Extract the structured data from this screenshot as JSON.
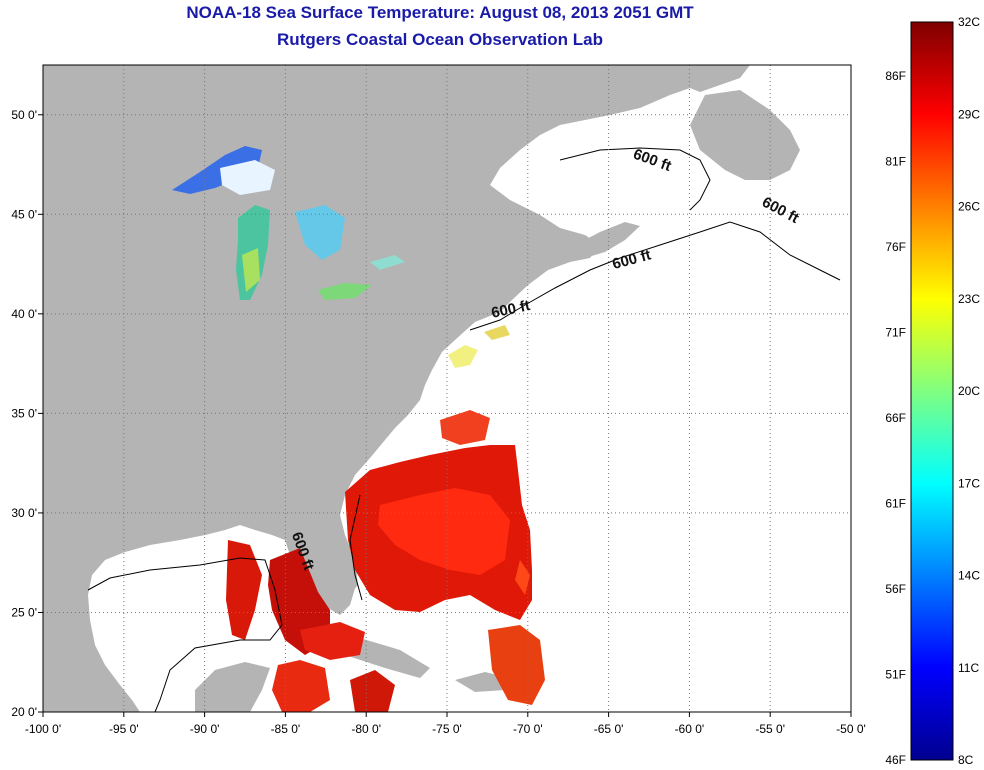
{
  "title": {
    "line1": "NOAA-18 Sea Surface Temperature:  August 08, 2013 2051 GMT",
    "line2": "Rutgers Coastal Ocean Observation Lab"
  },
  "map": {
    "lon_range": [
      -100,
      -50
    ],
    "lat_range": [
      20,
      52.5
    ],
    "lon_ticks": [
      {
        "value": -100,
        "label": "-100 0'"
      },
      {
        "value": -95,
        "label": "-95 0'"
      },
      {
        "value": -90,
        "label": "-90 0'"
      },
      {
        "value": -85,
        "label": "-85 0'"
      },
      {
        "value": -80,
        "label": "-80 0'"
      },
      {
        "value": -75,
        "label": "-75 0'"
      },
      {
        "value": -70,
        "label": "-70 0'"
      },
      {
        "value": -65,
        "label": "-65 0'"
      },
      {
        "value": -60,
        "label": "-60 0'"
      },
      {
        "value": -55,
        "label": "-55 0'"
      },
      {
        "value": -50,
        "label": "-50 0'"
      }
    ],
    "lat_ticks": [
      {
        "value": 50,
        "label": "50 0'"
      },
      {
        "value": 45,
        "label": "45 0'"
      },
      {
        "value": 40,
        "label": "40 0'"
      },
      {
        "value": 35,
        "label": "35 0'"
      },
      {
        "value": 30,
        "label": "30 0'"
      },
      {
        "value": 25,
        "label": "25 0'"
      },
      {
        "value": 20,
        "label": "20 0'"
      }
    ],
    "isobath_labels": [
      {
        "text": "600 ft",
        "lon": -62.4,
        "lat": 47.5,
        "angle": 20
      },
      {
        "text": "600 ft",
        "lon": -54.5,
        "lat": 45.0,
        "angle": 28
      },
      {
        "text": "600 ft",
        "lon": -63.5,
        "lat": 42.5,
        "angle": -15
      },
      {
        "text": "600 ft",
        "lon": -71.0,
        "lat": 40.0,
        "angle": -12
      },
      {
        "text": "600 ft",
        "lon": -84.2,
        "lat": 28.0,
        "angle": 70
      }
    ],
    "land_color": "#b4b4b4",
    "ocean_color": "#ffffff",
    "grid": "dotted"
  },
  "colorbar": {
    "min_c": 8,
    "max_c": 32,
    "celsius_labels": [
      "32C",
      "29C",
      "26C",
      "23C",
      "20C",
      "17C",
      "14C",
      "11C",
      "8C"
    ],
    "fahrenheit_labels": [
      "86F",
      "81F",
      "76F",
      "71F",
      "66F",
      "61F",
      "56F",
      "51F",
      "46F"
    ],
    "colormap": [
      "#7f0000",
      "#ff0000",
      "#ff8000",
      "#ffff00",
      "#80ff80",
      "#00ffff",
      "#0080ff",
      "#0000ff",
      "#00008f"
    ]
  }
}
